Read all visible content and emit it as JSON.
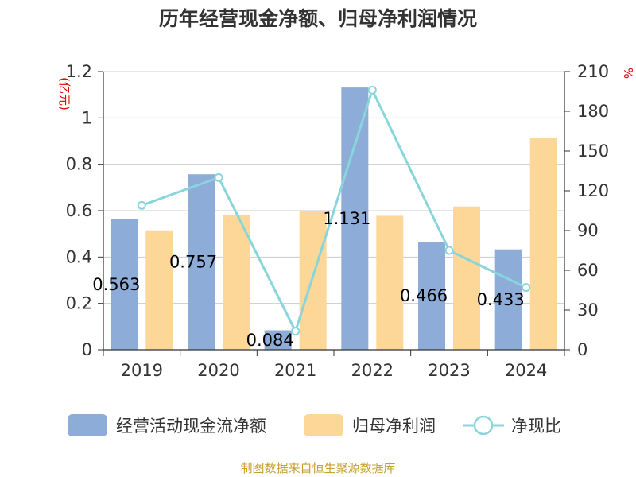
{
  "chart_data": {
    "type": "bar",
    "title": "历年经营现金净额、归母净利润情况",
    "categories": [
      "2019",
      "2020",
      "2021",
      "2022",
      "2023",
      "2024"
    ],
    "left_unit": "(亿元)",
    "right_unit": "%",
    "y_left": {
      "min": 0,
      "max": 1.2,
      "ticks": [
        "0",
        "0.2",
        "0.4",
        "0.6",
        "0.8",
        "1",
        "1.2"
      ]
    },
    "y_right": {
      "min": 0,
      "max": 210,
      "ticks": [
        "0",
        "30",
        "60",
        "90",
        "120",
        "150",
        "180",
        "210"
      ]
    },
    "grid": true,
    "legend_position": "bottom",
    "series": [
      {
        "name": "经营活动现金流净额",
        "type": "bar",
        "axis": "left",
        "color": "#8eacd8",
        "values": [
          0.563,
          0.757,
          0.084,
          1.131,
          0.466,
          0.433
        ],
        "labels": [
          "0.563",
          "0.757",
          "0.084",
          "1.131",
          "0.466",
          "0.433"
        ]
      },
      {
        "name": "归母净利润",
        "type": "bar",
        "axis": "left",
        "color": "#fdd797",
        "values": [
          0.515,
          0.583,
          0.598,
          0.578,
          0.618,
          0.912
        ]
      },
      {
        "name": "净现比",
        "type": "line",
        "axis": "right",
        "color": "#88d6dc",
        "values": [
          109,
          130,
          14,
          196,
          75,
          47
        ]
      }
    ],
    "source": "制图数据来自恒生聚源数据库"
  }
}
